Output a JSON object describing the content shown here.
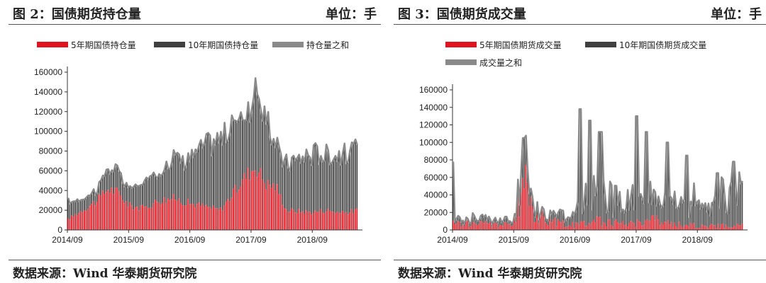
{
  "charts": [
    {
      "title": "图 2：国债期货持仓量",
      "unit": "单位：手",
      "source": "数据来源：Wind 华泰期货研究院"
    },
    {
      "title": "图 3：国债期货成交量",
      "unit": "单位：手",
      "source": "数据来源：Wind 华泰期货研究院"
    }
  ],
  "colors": {
    "red": "#e0141e",
    "dark": "#404040",
    "gray": "#8a8a8a"
  },
  "chart_data": [
    {
      "type": "bar",
      "legend_position": "top",
      "grid": false,
      "series": [
        {
          "name": "5年期国债持仓量",
          "kind": "bar",
          "color": "#e0141e"
        },
        {
          "name": "10年期国债持仓量",
          "kind": "bar",
          "color": "#404040"
        },
        {
          "name": "持仓量之和",
          "kind": "line",
          "color": "#8a8a8a"
        }
      ],
      "ylim": [
        0,
        160000
      ],
      "yticks": [
        0,
        20000,
        40000,
        60000,
        80000,
        100000,
        120000,
        140000,
        160000
      ],
      "xlim": [
        "2014-09",
        "2019-06"
      ],
      "xticks": [
        "2014/09",
        "2015/09",
        "2016/09",
        "2017/09",
        "2018/09"
      ],
      "five_year_points": [
        [
          "2014-09",
          10000
        ],
        [
          "2014-12",
          20000
        ],
        [
          "2015-03",
          30000
        ],
        [
          "2015-05",
          42000
        ],
        [
          "2015-07",
          38000
        ],
        [
          "2015-09",
          25000
        ],
        [
          "2015-12",
          22000
        ],
        [
          "2016-03",
          30000
        ],
        [
          "2016-06",
          32000
        ],
        [
          "2016-09",
          27000
        ],
        [
          "2016-12",
          24000
        ],
        [
          "2017-03",
          20000
        ],
        [
          "2017-06",
          40000
        ],
        [
          "2017-08",
          55000
        ],
        [
          "2017-10",
          65000
        ],
        [
          "2017-12",
          47000
        ],
        [
          "2018-02",
          44000
        ],
        [
          "2018-04",
          20000
        ],
        [
          "2018-09",
          18000
        ],
        [
          "2018-12",
          20000
        ],
        [
          "2019-03",
          17000
        ],
        [
          "2019-06",
          20000
        ]
      ],
      "ten_year_points": [
        [
          "2014-09",
          18000
        ],
        [
          "2014-12",
          12000
        ],
        [
          "2015-03",
          12000
        ],
        [
          "2015-05",
          22000
        ],
        [
          "2015-07",
          20000
        ],
        [
          "2015-09",
          17000
        ],
        [
          "2015-12",
          25000
        ],
        [
          "2016-03",
          30000
        ],
        [
          "2016-06",
          42000
        ],
        [
          "2016-09",
          46000
        ],
        [
          "2016-12",
          62000
        ],
        [
          "2017-03",
          72000
        ],
        [
          "2017-06",
          70000
        ],
        [
          "2017-08",
          62000
        ],
        [
          "2017-10",
          80000
        ],
        [
          "2017-12",
          62000
        ],
        [
          "2018-02",
          40000
        ],
        [
          "2018-04",
          48000
        ],
        [
          "2018-09",
          60000
        ],
        [
          "2018-12",
          58000
        ],
        [
          "2019-03",
          60000
        ],
        [
          "2019-06",
          60000
        ]
      ]
    },
    {
      "type": "bar",
      "legend_position": "top",
      "grid": false,
      "series": [
        {
          "name": "5年期国债期货成交量",
          "kind": "bar",
          "color": "#e0141e"
        },
        {
          "name": "10年期国债期货成交量",
          "kind": "bar",
          "color": "#404040"
        },
        {
          "name": "成交量之和",
          "kind": "line",
          "color": "#8a8a8a"
        }
      ],
      "ylim": [
        0,
        160000
      ],
      "yticks": [
        0,
        20000,
        40000,
        60000,
        80000,
        100000,
        120000,
        140000,
        160000
      ],
      "xlim": [
        "2014-09",
        "2019-06"
      ],
      "xticks": [
        "2014/09",
        "2015/09",
        "2016/09",
        "2017/09",
        "2018/09"
      ],
      "five_year_points": [
        [
          "2014-09",
          8000
        ],
        [
          "2015-03",
          8000
        ],
        [
          "2015-09",
          6000
        ],
        [
          "2015-11",
          62000
        ],
        [
          "2016-01",
          20000
        ],
        [
          "2016-05",
          10000
        ],
        [
          "2016-09",
          6000
        ],
        [
          "2016-12",
          12000
        ],
        [
          "2017-03",
          10000
        ],
        [
          "2017-06",
          8000
        ],
        [
          "2017-09",
          9000
        ],
        [
          "2017-12",
          14000
        ],
        [
          "2018-03",
          8000
        ],
        [
          "2018-06",
          7000
        ],
        [
          "2018-09",
          5000
        ],
        [
          "2018-12",
          5000
        ],
        [
          "2019-03",
          5000
        ],
        [
          "2019-06",
          6000
        ]
      ],
      "ten_year_points": [
        [
          "2014-09",
          6000
        ],
        [
          "2015-03",
          8000
        ],
        [
          "2015-09",
          4000
        ],
        [
          "2015-11",
          30000
        ],
        [
          "2016-01",
          10000
        ],
        [
          "2016-05",
          8000
        ],
        [
          "2016-09",
          14000
        ],
        [
          "2016-12",
          40000
        ],
        [
          "2017-03",
          36000
        ],
        [
          "2017-06",
          28000
        ],
        [
          "2017-09",
          40000
        ],
        [
          "2017-12",
          32000
        ],
        [
          "2018-03",
          30000
        ],
        [
          "2018-06",
          28000
        ],
        [
          "2018-09",
          34000
        ],
        [
          "2018-12",
          36000
        ],
        [
          "2019-03",
          40000
        ],
        [
          "2019-06",
          42000
        ]
      ],
      "sum_spikes": [
        [
          "2014-09",
          78000
        ],
        [
          "2015-11",
          105000
        ],
        [
          "2016-10",
          138000
        ],
        [
          "2016-12",
          125000
        ],
        [
          "2017-02",
          112000
        ],
        [
          "2017-09",
          130000
        ],
        [
          "2017-11",
          112000
        ],
        [
          "2018-03",
          100000
        ],
        [
          "2018-07",
          85000
        ],
        [
          "2019-01",
          65000
        ],
        [
          "2019-04",
          78000
        ]
      ]
    }
  ]
}
